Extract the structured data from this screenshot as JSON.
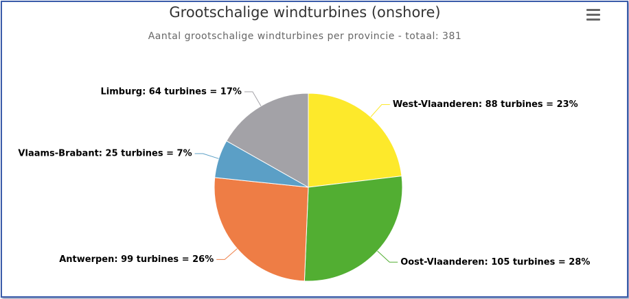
{
  "chart_data": {
    "type": "pie",
    "title": "Grootschalige windturbines (onshore)",
    "subtitle": "Aantal grootschalige windturbines per provincie - totaal: 381",
    "categories": [
      "West-Vlaanderen",
      "Oost-Vlaanderen",
      "Antwerpen",
      "Vlaams-Brabant",
      "Limburg"
    ],
    "values": [
      88,
      105,
      99,
      25,
      64
    ],
    "value_labels": [
      "West-Vlaanderen: 88 turbines = 23%",
      "Oost-Vlaanderen: 105 turbines = 28%",
      "Antwerpen: 99 turbines = 26%",
      "Vlaams-Brabant: 25 turbines = 7%",
      "Limburg: 64 turbines = 17%"
    ],
    "colors": [
      "#fde92b",
      "#52ae32",
      "#ee7d45",
      "#5b9fc6",
      "#a3a2a7"
    ]
  }
}
